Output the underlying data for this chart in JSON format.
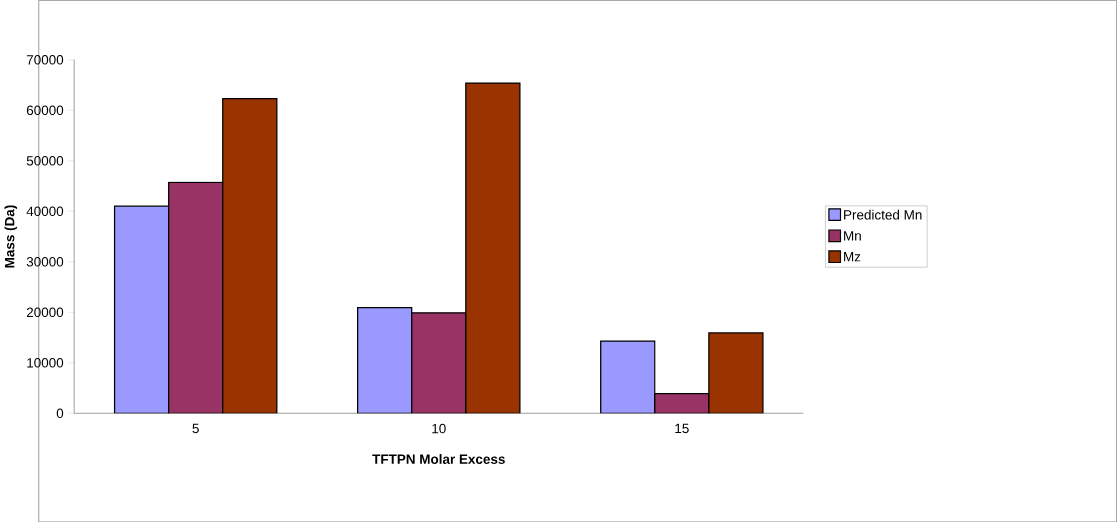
{
  "chart_data": {
    "type": "bar",
    "xlabel": "TFTPN Molar Excess",
    "ylabel": "Mass (Da)",
    "categories": [
      "5",
      "10",
      "15"
    ],
    "series": [
      {
        "name": "Predicted Mn",
        "color": "#9999ff",
        "values": [
          41000,
          20900,
          14300
        ]
      },
      {
        "name": "Mn",
        "color": "#993366",
        "values": [
          45700,
          19900,
          3900
        ]
      },
      {
        "name": "Mz",
        "color": "#993300",
        "values": [
          62300,
          65400,
          15900
        ]
      }
    ],
    "ylim": [
      0,
      70000
    ],
    "yticks": [
      0,
      10000,
      20000,
      30000,
      40000,
      50000,
      60000,
      70000
    ],
    "grid": false,
    "legend": "right"
  }
}
